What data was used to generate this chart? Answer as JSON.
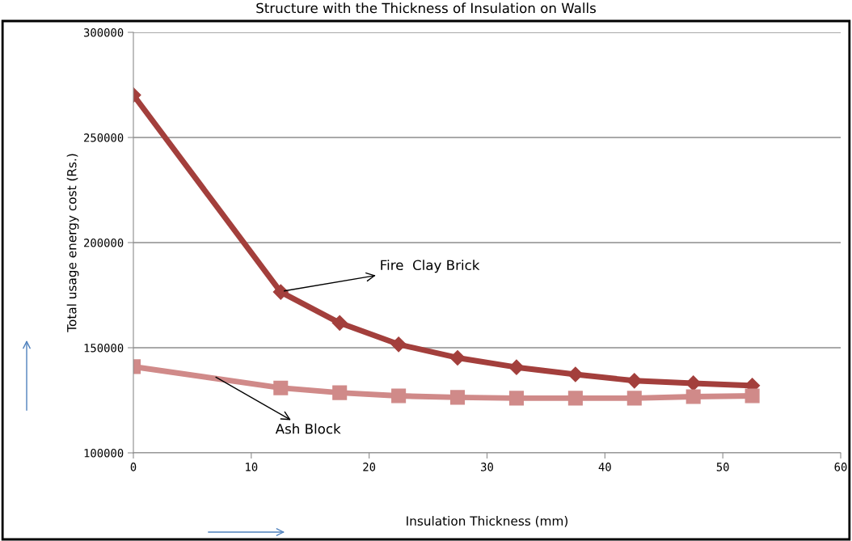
{
  "chart_data": {
    "type": "line",
    "title": "Structure with the Thickness of Insulation on Walls",
    "xlabel": "Insulation Thickness (mm)",
    "ylabel": "Total usage energy cost (Rs.)",
    "xlim": [
      0,
      60
    ],
    "xticks": [
      0,
      10,
      20,
      30,
      40,
      50,
      60
    ],
    "ylim": [
      100000,
      300000
    ],
    "yticks": [
      100000,
      150000,
      200000,
      250000,
      300000
    ],
    "grid": "y",
    "series": [
      {
        "x": [
          0,
          12.5,
          17.5,
          22.5,
          27.5,
          32.5,
          37.5,
          42.5,
          47.5,
          52.5
        ],
        "values": [
          270200,
          176500,
          161800,
          151600,
          145200,
          140700,
          137300,
          134300,
          133100,
          132000
        ],
        "color": "#a33f3c",
        "marker": "diamond"
      },
      {
        "x": [
          0,
          12.5,
          17.5,
          22.5,
          27.5,
          32.5,
          37.5,
          42.5,
          47.5,
          52.5
        ],
        "values": [
          141000,
          130900,
          128600,
          127100,
          126400,
          126000,
          126000,
          126000,
          126700,
          127100
        ],
        "color": "#d08a89",
        "marker": "square"
      }
    ],
    "annotations": [
      {
        "text": "Fire  Clay Brick",
        "x": 12.8,
        "y": 177000
      },
      {
        "text": "Ash Block",
        "x": 7,
        "y": 136000
      }
    ]
  }
}
